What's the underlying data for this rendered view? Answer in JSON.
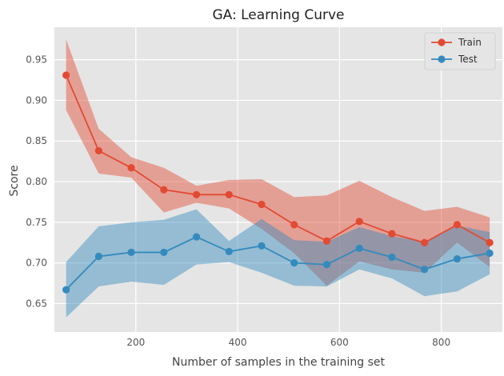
{
  "chart_data": {
    "type": "line",
    "title": "GA: Learning Curve",
    "xlabel": "Number of samples in the training set",
    "ylabel": "Score",
    "xlim": [
      40,
      920
    ],
    "ylim": [
      0.615,
      0.99
    ],
    "xticks": [
      200,
      400,
      600,
      800
    ],
    "yticks": [
      0.65,
      0.7,
      0.75,
      0.8,
      0.85,
      0.9,
      0.95
    ],
    "grid": true,
    "legend_position": "top-right",
    "x": [
      63,
      127,
      191,
      255,
      319,
      383,
      447,
      511,
      575,
      639,
      703,
      767,
      831,
      895
    ],
    "series": [
      {
        "name": "Train",
        "color": "#E24A33",
        "values": [
          0.931,
          0.838,
          0.817,
          0.79,
          0.784,
          0.784,
          0.772,
          0.747,
          0.727,
          0.751,
          0.736,
          0.725,
          0.747,
          0.725
        ],
        "upper": [
          0.975,
          0.865,
          0.83,
          0.817,
          0.795,
          0.802,
          0.803,
          0.781,
          0.783,
          0.801,
          0.781,
          0.764,
          0.769,
          0.756
        ],
        "lower": [
          0.888,
          0.81,
          0.805,
          0.762,
          0.774,
          0.767,
          0.742,
          0.712,
          0.672,
          0.702,
          0.692,
          0.688,
          0.725,
          0.695
        ]
      },
      {
        "name": "Test",
        "color": "#348ABD",
        "values": [
          0.667,
          0.708,
          0.713,
          0.713,
          0.732,
          0.714,
          0.721,
          0.7,
          0.698,
          0.718,
          0.707,
          0.692,
          0.705,
          0.712
        ],
        "upper": [
          0.701,
          0.745,
          0.75,
          0.753,
          0.766,
          0.727,
          0.754,
          0.728,
          0.726,
          0.744,
          0.733,
          0.726,
          0.746,
          0.738
        ],
        "lower": [
          0.633,
          0.671,
          0.677,
          0.673,
          0.698,
          0.701,
          0.688,
          0.672,
          0.671,
          0.692,
          0.681,
          0.659,
          0.665,
          0.686
        ]
      }
    ]
  }
}
